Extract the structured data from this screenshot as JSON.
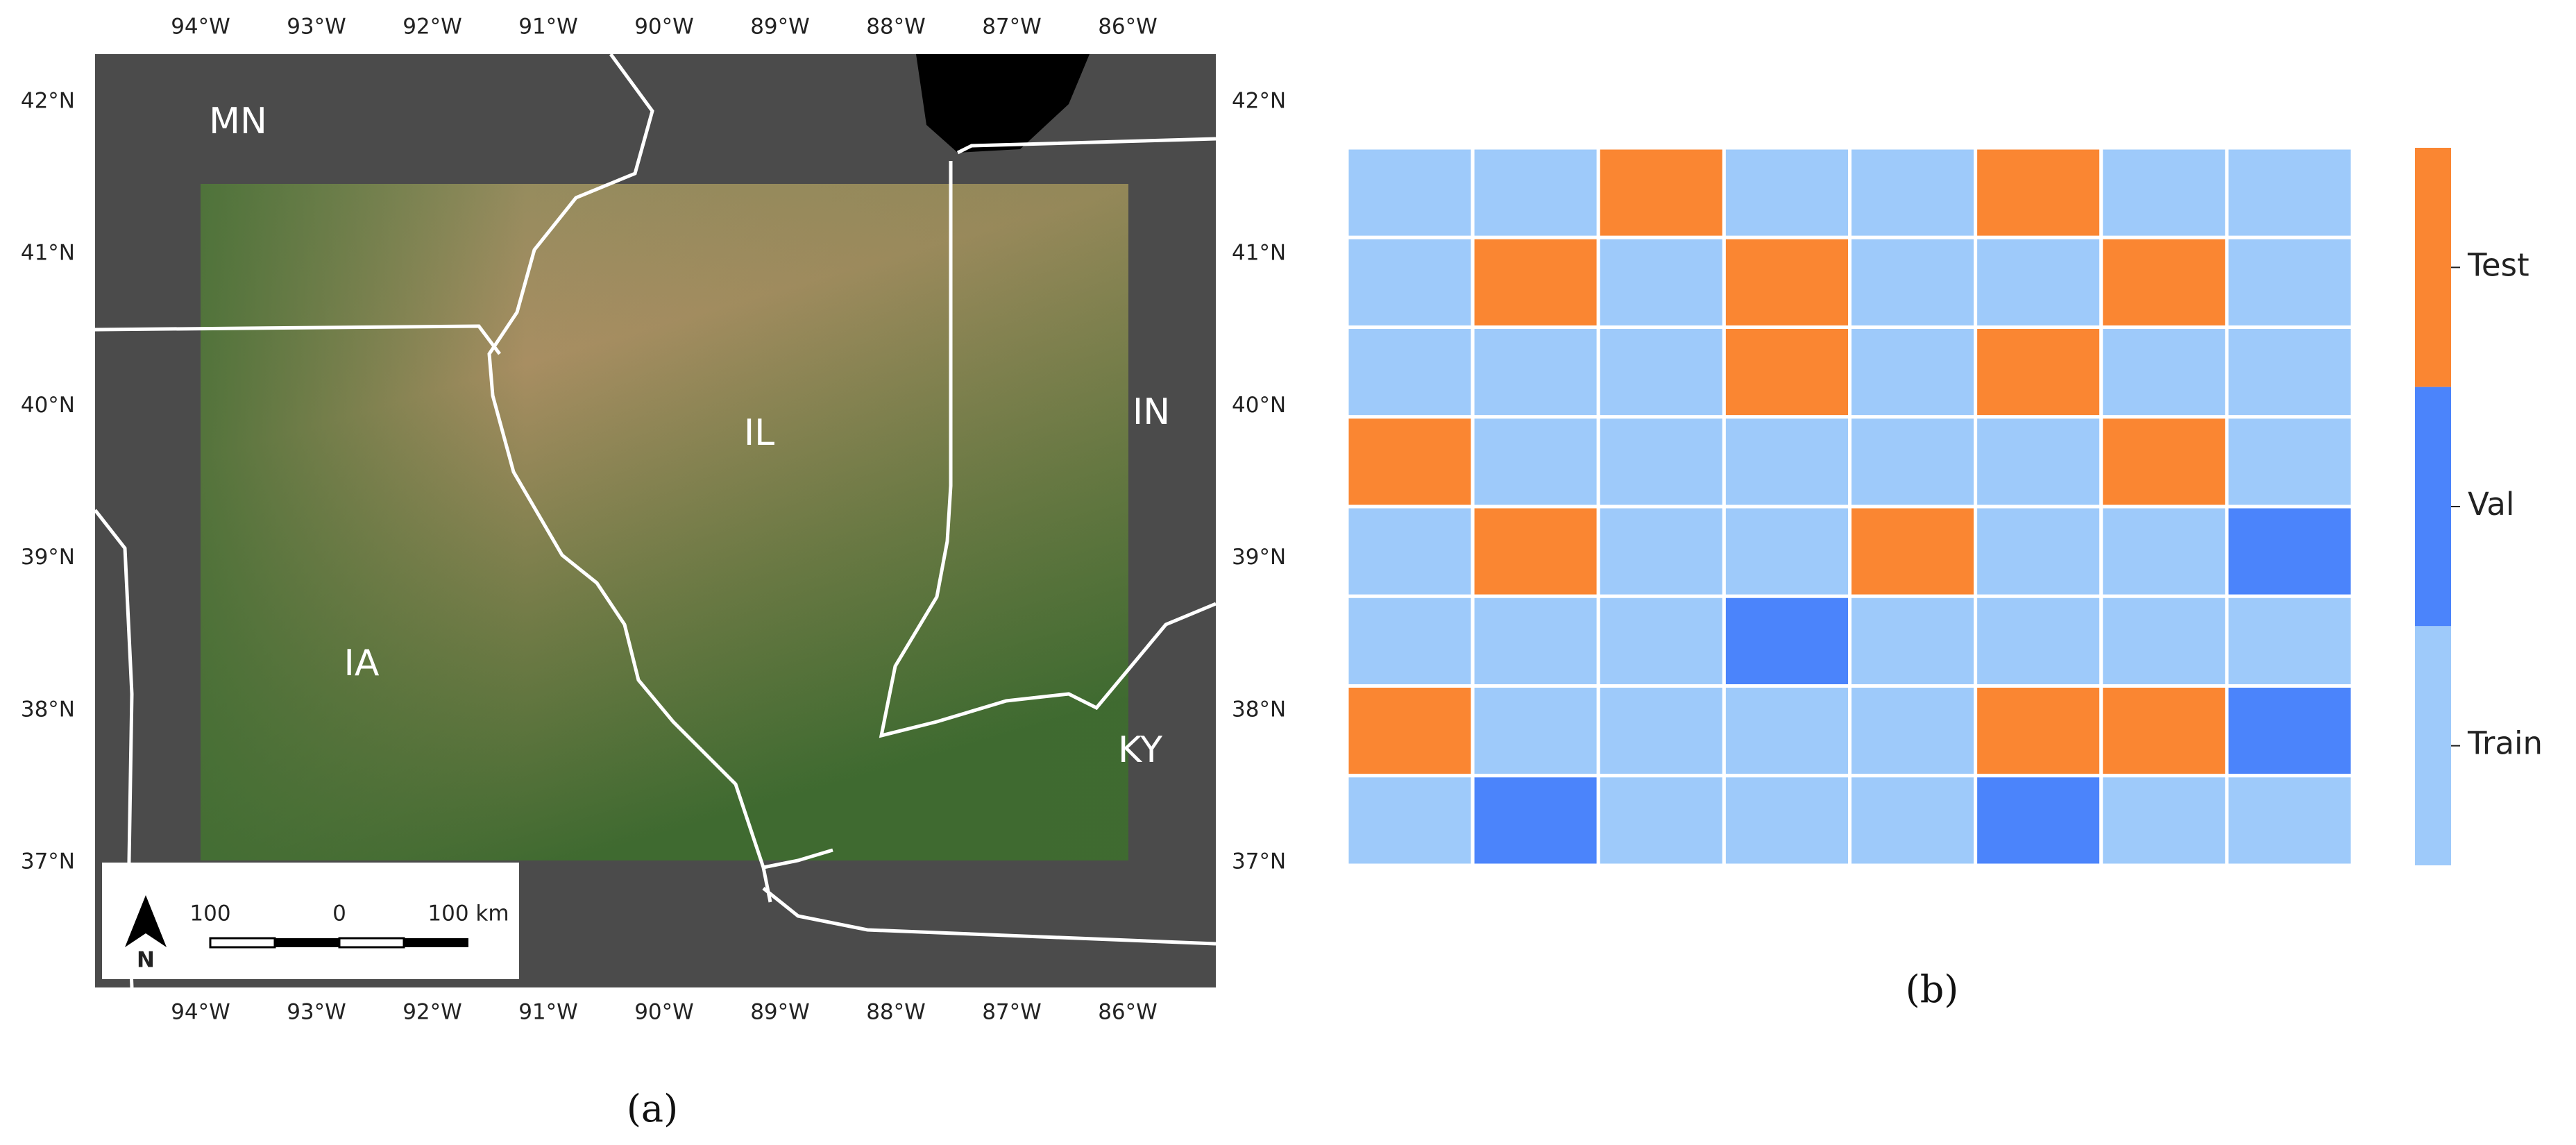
{
  "map": {
    "caption": "(a)",
    "lon_ticks": [
      "94°W",
      "93°W",
      "92°W",
      "91°W",
      "90°W",
      "89°W",
      "88°W",
      "87°W",
      "86°W"
    ],
    "lat_ticks": [
      "42°N",
      "41°N",
      "40°N",
      "39°N",
      "38°N",
      "37°N"
    ],
    "state_labels": [
      "MN",
      "IL",
      "IN",
      "IA",
      "KY"
    ],
    "north_label": "N",
    "scale_labels": [
      "100",
      "0",
      "100 km"
    ]
  },
  "grid": {
    "caption": "(b)",
    "colors": {
      "Test": "#fa8632",
      "Val": "#4b84fb",
      "Train": "#9ecafa"
    },
    "legend": [
      "Test",
      "Val",
      "Train"
    ],
    "rows": [
      [
        "Train",
        "Train",
        "Test",
        "Train",
        "Train",
        "Test",
        "Train",
        "Train"
      ],
      [
        "Train",
        "Test",
        "Train",
        "Test",
        "Train",
        "Train",
        "Test",
        "Train"
      ],
      [
        "Train",
        "Train",
        "Train",
        "Test",
        "Train",
        "Test",
        "Train",
        "Train"
      ],
      [
        "Test",
        "Train",
        "Train",
        "Train",
        "Train",
        "Train",
        "Test",
        "Train"
      ],
      [
        "Train",
        "Test",
        "Train",
        "Train",
        "Test",
        "Train",
        "Train",
        "Val"
      ],
      [
        "Train",
        "Train",
        "Train",
        "Val",
        "Train",
        "Train",
        "Train",
        "Train"
      ],
      [
        "Test",
        "Train",
        "Train",
        "Train",
        "Train",
        "Test",
        "Test",
        "Val"
      ],
      [
        "Train",
        "Val",
        "Train",
        "Train",
        "Train",
        "Val",
        "Train",
        "Train"
      ]
    ]
  }
}
